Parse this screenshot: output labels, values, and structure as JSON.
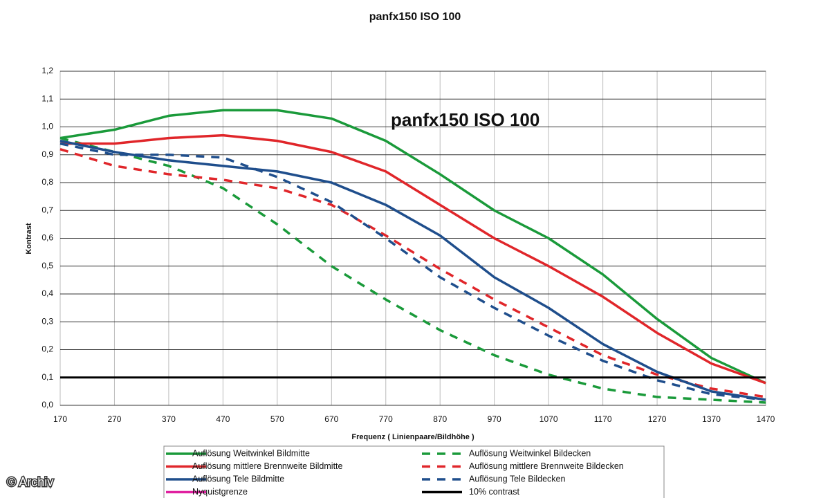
{
  "chart_data": {
    "type": "line",
    "title": "panfx150 ISO 100",
    "x_label": "Frequenz ( Linienpaare/Bildhöhe )",
    "y_label": "Kontrast",
    "annotations": [
      "panfx150 ISO 100",
      "© Archiv"
    ],
    "x": [
      170,
      270,
      370,
      470,
      570,
      670,
      770,
      870,
      970,
      1070,
      1170,
      1270,
      1370,
      1470
    ],
    "xlim": [
      170,
      1470
    ],
    "xticks": [
      170,
      270,
      370,
      470,
      570,
      670,
      770,
      870,
      970,
      1070,
      1170,
      1270,
      1370,
      1470
    ],
    "ylim": [
      0,
      1.2
    ],
    "yticks": [
      {
        "value": 0,
        "label": "0,0"
      },
      {
        "value": 0.1,
        "label": "0,1"
      },
      {
        "value": 0.2,
        "label": "0,2"
      },
      {
        "value": 0.3,
        "label": "0,3"
      },
      {
        "value": 0.4,
        "label": "0,4"
      },
      {
        "value": 0.5,
        "label": "0,5"
      },
      {
        "value": 0.6,
        "label": "0,6"
      },
      {
        "value": 0.7,
        "label": "0,7"
      },
      {
        "value": 0.8,
        "label": "0,8"
      },
      {
        "value": 0.9,
        "label": "0,9"
      },
      {
        "value": 1.0,
        "label": "1,0"
      },
      {
        "value": 1.1,
        "label": "1,1"
      },
      {
        "value": 1.2,
        "label": "1,2"
      }
    ],
    "grid": true,
    "legend": "bottom",
    "series": [
      {
        "name": "Auflösung Weitwinkel Bildmitte",
        "color": "#1a9a3a",
        "dashed": false,
        "values": [
          0.96,
          0.99,
          1.04,
          1.06,
          1.06,
          1.03,
          0.95,
          0.83,
          0.7,
          0.6,
          0.47,
          0.31,
          0.17,
          0.08
        ]
      },
      {
        "name": "Auflösung Weitwinkel Bildecken",
        "color": "#1a9a3a",
        "dashed": true,
        "values": [
          0.96,
          0.91,
          0.86,
          0.78,
          0.65,
          0.5,
          0.38,
          0.27,
          0.18,
          0.11,
          0.06,
          0.03,
          0.02,
          0.01
        ]
      },
      {
        "name": "Auflösung mittlere Brennweite Bildmitte",
        "color": "#e0262a",
        "dashed": false,
        "values": [
          0.94,
          0.94,
          0.96,
          0.97,
          0.95,
          0.91,
          0.84,
          0.72,
          0.6,
          0.5,
          0.39,
          0.26,
          0.15,
          0.08
        ]
      },
      {
        "name": "Auflösung mittlere Brennweite Bildecken",
        "color": "#e0262a",
        "dashed": true,
        "values": [
          0.92,
          0.86,
          0.83,
          0.81,
          0.78,
          0.72,
          0.61,
          0.49,
          0.38,
          0.28,
          0.18,
          0.11,
          0.06,
          0.03
        ]
      },
      {
        "name": "Auflösung Tele Bildmitte",
        "color": "#1f4e8c",
        "dashed": false,
        "values": [
          0.95,
          0.91,
          0.88,
          0.86,
          0.84,
          0.8,
          0.72,
          0.61,
          0.46,
          0.35,
          0.22,
          0.12,
          0.05,
          0.02
        ]
      },
      {
        "name": "Auflösung Tele Bildecken",
        "color": "#1f4e8c",
        "dashed": true,
        "values": [
          0.94,
          0.9,
          0.9,
          0.89,
          0.82,
          0.73,
          0.6,
          0.46,
          0.35,
          0.25,
          0.16,
          0.09,
          0.04,
          0.02
        ]
      },
      {
        "name": "Nyquistgrenze",
        "color": "#e020a0",
        "dashed": false,
        "values": [
          null,
          null,
          null,
          null,
          null,
          null,
          null,
          null,
          null,
          null,
          null,
          null,
          null,
          null
        ]
      },
      {
        "name": "10% contrast",
        "color": "#000000",
        "dashed": false,
        "values": [
          0.1,
          0.1,
          0.1,
          0.1,
          0.1,
          0.1,
          0.1,
          0.1,
          0.1,
          0.1,
          0.1,
          0.1,
          0.1,
          0.1
        ]
      }
    ]
  }
}
